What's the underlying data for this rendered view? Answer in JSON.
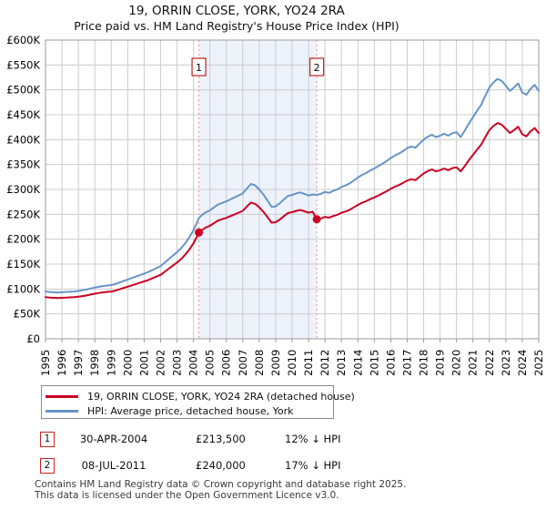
{
  "title": "19, ORRIN CLOSE, YORK, YO24 2RA",
  "subtitle": "Price paid vs. HM Land Registry's House Price Index (HPI)",
  "colors": {
    "property_line": "#cc0022",
    "hpi_line": "#6694c8",
    "grid": "#cccccc",
    "plot_border": "#999999",
    "sale_dotted_line": "#f09090",
    "shade": "#eef2fb",
    "marker_box_border": "#bb2222",
    "annotation_box_border": "#cc2222"
  },
  "chart_data": {
    "type": "line",
    "title": "19, ORRIN CLOSE, YORK, YO24 2RA",
    "subtitle": "Price paid vs. HM Land Registry's House Price Index (HPI)",
    "xlim": [
      1995,
      2025
    ],
    "ylim": [
      0,
      600000
    ],
    "grid": true,
    "legend_position": "bottom",
    "y_tick_labels": [
      "£0",
      "£50K",
      "£100K",
      "£150K",
      "£200K",
      "£250K",
      "£300K",
      "£350K",
      "£400K",
      "£450K",
      "£500K",
      "£550K",
      "£600K"
    ],
    "x_tick_labels": [
      "1995",
      "1996",
      "1997",
      "1998",
      "1999",
      "2000",
      "2001",
      "2002",
      "2003",
      "2004",
      "2005",
      "2006",
      "2007",
      "2008",
      "2009",
      "2010",
      "2011",
      "2012",
      "2013",
      "2014",
      "2015",
      "2016",
      "2017",
      "2018",
      "2019",
      "2020",
      "2021",
      "2022",
      "2023",
      "2024",
      "2025"
    ],
    "x": [
      1995,
      1995.25,
      1995.5,
      1995.75,
      1996,
      1996.25,
      1996.5,
      1996.75,
      1997,
      1997.25,
      1997.5,
      1997.75,
      1998,
      1998.25,
      1998.5,
      1998.75,
      1999,
      1999.25,
      1999.5,
      1999.75,
      2000,
      2000.25,
      2000.5,
      2000.75,
      2001,
      2001.25,
      2001.5,
      2001.75,
      2002,
      2002.25,
      2002.5,
      2002.75,
      2003,
      2003.25,
      2003.5,
      2003.75,
      2004,
      2004.25,
      2004.33,
      2004.5,
      2004.75,
      2005,
      2005.25,
      2005.5,
      2005.75,
      2006,
      2006.25,
      2006.5,
      2006.75,
      2007,
      2007.25,
      2007.5,
      2007.75,
      2008,
      2008.25,
      2008.5,
      2008.75,
      2009,
      2009.25,
      2009.5,
      2009.75,
      2010,
      2010.25,
      2010.5,
      2010.75,
      2011,
      2011.25,
      2011.5,
      2011.75,
      2012,
      2012.25,
      2012.5,
      2012.75,
      2013,
      2013.25,
      2013.5,
      2013.75,
      2014,
      2014.25,
      2014.5,
      2014.75,
      2015,
      2015.25,
      2015.5,
      2015.75,
      2016,
      2016.25,
      2016.5,
      2016.75,
      2017,
      2017.25,
      2017.5,
      2017.75,
      2018,
      2018.25,
      2018.5,
      2018.75,
      2019,
      2019.25,
      2019.5,
      2019.75,
      2020,
      2020.25,
      2020.5,
      2020.75,
      2021,
      2021.25,
      2021.5,
      2021.75,
      2022,
      2022.25,
      2022.5,
      2022.75,
      2023,
      2023.25,
      2023.5,
      2023.75,
      2024,
      2024.25,
      2024.5,
      2024.75,
      2025
    ],
    "series": [
      {
        "name": "19, ORRIN CLOSE, YORK, YO24 2RA (detached house)",
        "color": "#cc0022",
        "values_k": [
          83.6,
          82.7,
          82.3,
          81.8,
          82.3,
          82.7,
          83.2,
          83.6,
          84.5,
          85.8,
          87.1,
          88.9,
          90.6,
          92,
          93.3,
          94.2,
          95,
          96.8,
          99.4,
          102.1,
          104.7,
          107.4,
          110,
          112.6,
          115.3,
          117.9,
          121.4,
          125,
          128.5,
          134.6,
          140.8,
          147,
          153.1,
          160.2,
          169,
          179.5,
          191.8,
          207.7,
          213.5,
          218.2,
          223.5,
          227,
          232.3,
          237.6,
          240.2,
          242.9,
          246.4,
          249.9,
          253.4,
          257,
          265.8,
          273.7,
          271,
          264,
          255.2,
          244.6,
          233.2,
          234.1,
          239.4,
          246.4,
          252.6,
          254.3,
          257,
          258.7,
          256.1,
          253.4,
          255.2,
          240,
          241.5,
          244.9,
          243.2,
          246.5,
          249,
          253.2,
          255.6,
          259,
          263.9,
          268.9,
          273.1,
          276.4,
          280.5,
          283.9,
          288,
          292.2,
          296.3,
          301.3,
          305.4,
          308.8,
          312.9,
          317.9,
          320.4,
          318.7,
          325.4,
          332,
          337,
          340.3,
          336.2,
          338.6,
          342,
          338.6,
          342.8,
          344.5,
          336.2,
          346.9,
          358.6,
          369.4,
          380.1,
          390.1,
          405,
          419.2,
          427.5,
          433.3,
          430,
          421.6,
          413.3,
          419.2,
          425.8,
          410.9,
          406.7,
          416.7,
          423.3,
          413.3
        ]
      },
      {
        "name": "HPI: Average price, detached house, York",
        "color": "#6694c8",
        "values_k": [
          95,
          94,
          93.5,
          93,
          93.5,
          94,
          94.5,
          95,
          96,
          97.5,
          99,
          101,
          103,
          104.5,
          106,
          107,
          108,
          110,
          113,
          116,
          119,
          122,
          125,
          128,
          131,
          134,
          138,
          142,
          146,
          153,
          160,
          167,
          174,
          182,
          192,
          204,
          218,
          236,
          242.6,
          248,
          254,
          258,
          264,
          270,
          273,
          276,
          280,
          284,
          288,
          292,
          302,
          311,
          308,
          300,
          290,
          278,
          265,
          266,
          272,
          280,
          287,
          289,
          292,
          294,
          291,
          288,
          290,
          289,
          291,
          295,
          293,
          297,
          300,
          305,
          308,
          312,
          318,
          324,
          329,
          333,
          338,
          342,
          347,
          352,
          357,
          363,
          368,
          372,
          377,
          383,
          386,
          384,
          392,
          400,
          406,
          410,
          405,
          408,
          412,
          408,
          413,
          415,
          405,
          418,
          432,
          445,
          458,
          470,
          488,
          505,
          515,
          522,
          518,
          508,
          498,
          505,
          513,
          495,
          490,
          502,
          510,
          498
        ]
      }
    ],
    "shaded_region_x": [
      2004.33,
      2011.5
    ],
    "markers": [
      {
        "label": "1",
        "x": 2004.33,
        "value_k": 213.5
      },
      {
        "label": "2",
        "x": 2011.5,
        "value_k": 240
      }
    ]
  },
  "transactions": [
    {
      "num": "1",
      "date": "30-APR-2004",
      "price": "£213,500",
      "hpi_delta": "12% ↓ HPI"
    },
    {
      "num": "2",
      "date": "08-JUL-2011",
      "price": "£240,000",
      "hpi_delta": "17% ↓ HPI"
    }
  ],
  "footer": {
    "line1": "Contains HM Land Registry data © Crown copyright and database right 2025.",
    "line2": "This data is licensed under the Open Government Licence v3.0."
  }
}
